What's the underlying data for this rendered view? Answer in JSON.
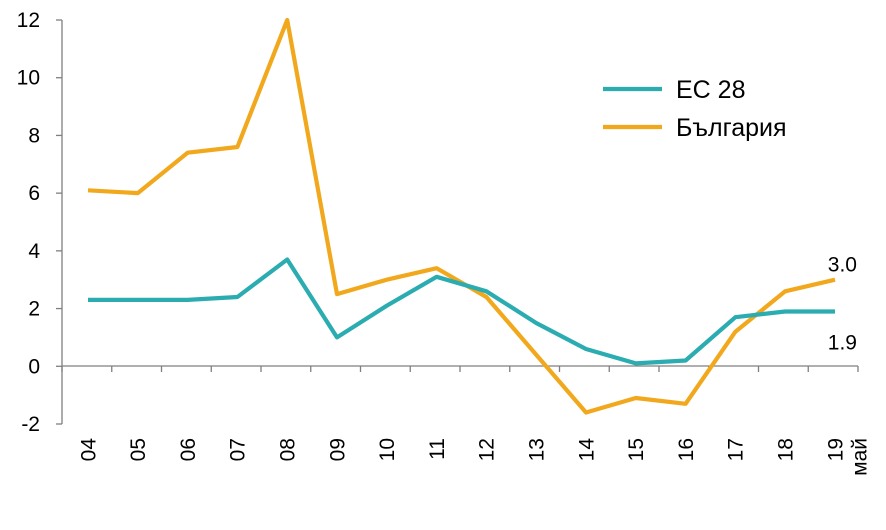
{
  "chart_data": {
    "type": "line",
    "title": "",
    "xlabel": "",
    "ylabel": "",
    "categories": [
      "04",
      "05",
      "06",
      "07",
      "08",
      "09",
      "10",
      "11",
      "12",
      "13",
      "14",
      "15",
      "16",
      "17",
      "18",
      "май 19"
    ],
    "category_lines": [
      [
        "04"
      ],
      [
        "05"
      ],
      [
        "06"
      ],
      [
        "07"
      ],
      [
        "08"
      ],
      [
        "09"
      ],
      [
        "10"
      ],
      [
        "11"
      ],
      [
        "12"
      ],
      [
        "13"
      ],
      [
        "14"
      ],
      [
        "15"
      ],
      [
        "16"
      ],
      [
        "17"
      ],
      [
        "18"
      ],
      [
        "май",
        "19"
      ]
    ],
    "ylim": [
      -2,
      12
    ],
    "yticks": [
      -2,
      0,
      2,
      4,
      6,
      8,
      10,
      12
    ],
    "grid": false,
    "legend_position": "top-right",
    "series": [
      {
        "name": "ЕС 28",
        "color": "#2bacb1",
        "values": [
          2.3,
          2.3,
          2.3,
          2.4,
          3.7,
          1.0,
          2.1,
          3.1,
          2.6,
          1.5,
          0.6,
          0.1,
          0.2,
          1.7,
          1.9,
          1.9
        ],
        "end_label": "1.9"
      },
      {
        "name": "България",
        "color": "#f2a81d",
        "values": [
          6.1,
          6.0,
          7.4,
          7.6,
          12.0,
          2.5,
          3.0,
          3.4,
          2.4,
          0.4,
          -1.6,
          -1.1,
          -1.3,
          1.2,
          2.6,
          3.0
        ],
        "end_label": "3.0"
      }
    ]
  }
}
